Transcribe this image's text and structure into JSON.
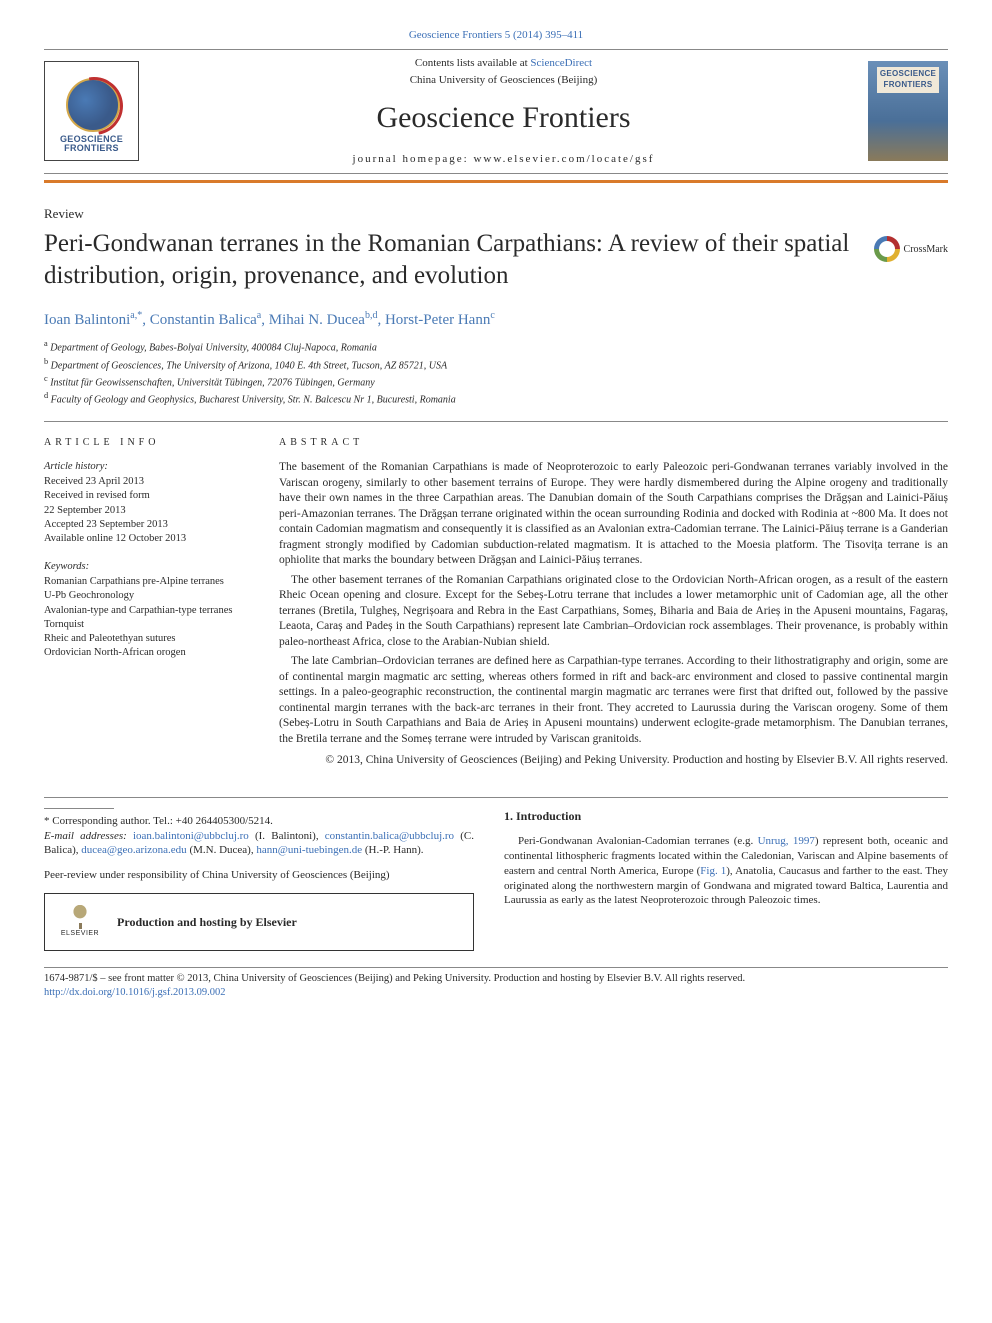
{
  "citation": "Geoscience Frontiers 5 (2014) 395–411",
  "masthead": {
    "contents_line_prefix": "Contents lists available at ",
    "contents_link": "ScienceDirect",
    "society": "China University of Geosciences (Beijing)",
    "journal": "Geoscience Frontiers",
    "homepage_prefix": "journal homepage: ",
    "homepage": "www.elsevier.com/locate/gsf",
    "logo_text": "GEOSCIENCE\nFRONTIERS",
    "cover_text": "GEOSCIENCE\nFRONTIERS"
  },
  "article_type": "Review",
  "title": "Peri-Gondwanan terranes in the Romanian Carpathians: A review of their spatial distribution, origin, provenance, and evolution",
  "crossmark_label": "CrossMark",
  "authors_html": "Ioan Balintoni<sup>a,*</sup>, Constantin Balica<sup>a</sup>, Mihai N. Ducea<sup>b,d</sup>, Horst-Peter Hann<sup>c</sup>",
  "affiliations": [
    "a Department of Geology, Babes-Bolyai University, 400084 Cluj-Napoca, Romania",
    "b Department of Geosciences, The University of Arizona, 1040 E. 4th Street, Tucson, AZ 85721, USA",
    "c Institut für Geowissenschaften, Universität Tübingen, 72076 Tübingen, Germany",
    "d Faculty of Geology and Geophysics, Bucharest University, Str. N. Balcescu Nr 1, Bucuresti, Romania"
  ],
  "article_info_head": "ARTICLE INFO",
  "abstract_head": "ABSTRACT",
  "history": {
    "head": "Article history:",
    "lines": [
      "Received 23 April 2013",
      "Received in revised form",
      "22 September 2013",
      "Accepted 23 September 2013",
      "Available online 12 October 2013"
    ]
  },
  "keywords": {
    "head": "Keywords:",
    "lines": [
      "Romanian Carpathians pre-Alpine terranes",
      "U-Pb Geochronology",
      "Avalonian-type and Carpathian-type terranes",
      "Tornquist",
      "Rheic and Paleotethyan sutures",
      "Ordovician North-African orogen"
    ]
  },
  "abstract": {
    "p1": "The basement of the Romanian Carpathians is made of Neoproterozoic to early Paleozoic peri-Gondwanan terranes variably involved in the Variscan orogeny, similarly to other basement terrains of Europe. They were hardly dismembered during the Alpine orogeny and traditionally have their own names in the three Carpathian areas. The Danubian domain of the South Carpathians comprises the Drăgșan and Lainici-Păiuș peri-Amazonian terranes. The Drăgșan terrane originated within the ocean surrounding Rodinia and docked with Rodinia at ~800 Ma. It does not contain Cadomian magmatism and consequently it is classified as an Avalonian extra-Cadomian terrane. The Lainici-Păiuș terrane is a Ganderian fragment strongly modified by Cadomian subduction-related magmatism. It is attached to the Moesia platform. The Tisovița terrane is an ophiolite that marks the boundary between Drăgșan and Lainici-Păiuș terranes.",
    "p2": "The other basement terranes of the Romanian Carpathians originated close to the Ordovician North-African orogen, as a result of the eastern Rheic Ocean opening and closure. Except for the Sebeș-Lotru terrane that includes a lower metamorphic unit of Cadomian age, all the other terranes (Bretila, Tulgheș, Negrișoara and Rebra in the East Carpathians, Someș, Biharia and Baia de Arieș in the Apuseni mountains, Fagaraș, Leaota, Caraș and Padeș in the South Carpathians) represent late Cambrian–Ordovician rock assemblages. Their provenance, is probably within paleo-northeast Africa, close to the Arabian-Nubian shield.",
    "p3": "The late Cambrian–Ordovician terranes are defined here as Carpathian-type terranes. According to their lithostratigraphy and origin, some are of continental margin magmatic arc setting, whereas others formed in rift and back-arc environment and closed to passive continental margin settings. In a paleo-geographic reconstruction, the continental margin magmatic arc terranes were first that drifted out, followed by the passive continental margin terranes with the back-arc terranes in their front. They accreted to Laurussia during the Variscan orogeny. Some of them (Sebeș-Lotru in South Carpathians and Baia de Arieș in Apuseni mountains) underwent eclogite-grade metamorphism. The Danubian terranes, the Bretila terrane and the Someș terrane were intruded by Variscan granitoids.",
    "copyright": "© 2013, China University of Geosciences (Beijing) and Peking University. Production and hosting by Elsevier B.V. All rights reserved."
  },
  "correspondence": {
    "line": "* Corresponding author. Tel.: +40 264405300/5214.",
    "email_label": "E-mail addresses: ",
    "emails": [
      {
        "addr": "ioan.balintoni@ubbcluj.ro",
        "who": " (I. Balintoni), "
      },
      {
        "addr": "constantin.balica@ubbcluj.ro",
        "who": " (C. Balica), "
      },
      {
        "addr": "ducea@geo.arizona.edu",
        "who": " (M.N. Ducea), "
      },
      {
        "addr": "hann@uni-tuebingen.de",
        "who": " (H.-P. Hann)."
      }
    ],
    "peer": "Peer-review under responsibility of China University of Geosciences (Beijing)",
    "hosting": "Production and hosting by Elsevier",
    "elsevier": "ELSEVIER"
  },
  "intro": {
    "head": "1. Introduction",
    "para_pre": "Peri-Gondwanan Avalonian-Cadomian terranes (e.g. ",
    "ref1": "Unrug, 1997",
    "para_mid": ") represent both, oceanic and continental lithospheric fragments located within the Caledonian, Variscan and Alpine basements of eastern and central North America, Europe (",
    "ref2": "Fig. 1",
    "para_post": "), Anatolia, Caucasus and farther to the east. They originated along the northwestern margin of Gondwana and migrated toward Baltica, Laurentia and Laurussia as early as the latest Neoproterozoic through Paleozoic times."
  },
  "footer": {
    "line1": "1674-9871/$ – see front matter © 2013, China University of Geosciences (Beijing) and Peking University. Production and hosting by Elsevier B.V. All rights reserved.",
    "doi": "http://dx.doi.org/10.1016/j.gsf.2013.09.002"
  },
  "colors": {
    "link": "#3b6fb6",
    "orange_rule": "#d97a2a"
  }
}
